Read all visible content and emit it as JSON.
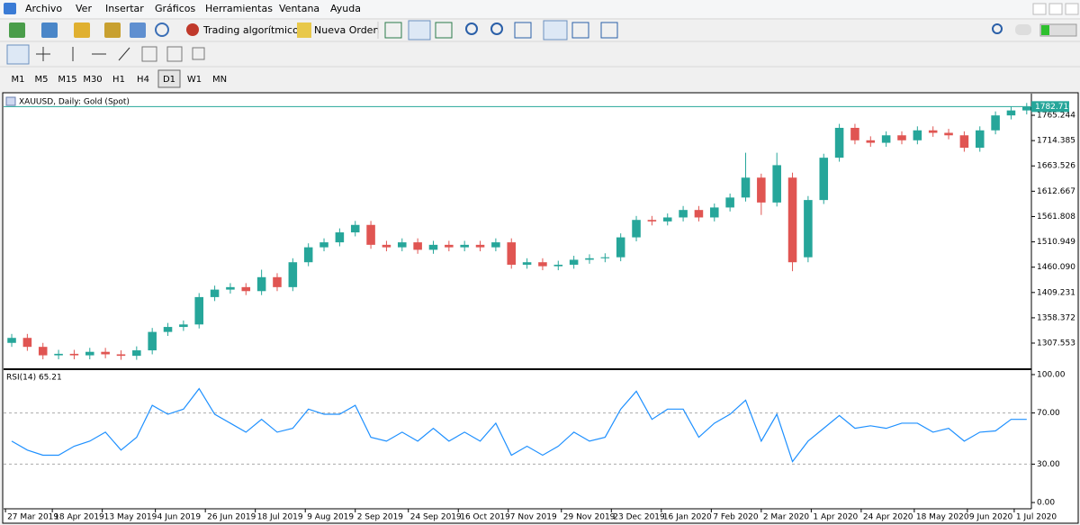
{
  "menu": [
    "Archivo",
    "Ver",
    "Insertar",
    "Gráficos",
    "Herramientas",
    "Ventana",
    "Ayuda"
  ],
  "toolbar": {
    "algo_button": "Trading algorítmico",
    "order_button": "Nueva Orden"
  },
  "timeframes": [
    "M1",
    "M5",
    "M15",
    "M30",
    "H1",
    "H4",
    "D1",
    "W1",
    "MN"
  ],
  "active_timeframe": "D1",
  "chart_data": [
    {
      "type": "candlestick",
      "title": "XAUUSD, Daily:  Gold (Spot)",
      "up_color": "#26a69a",
      "down_color": "#e05552",
      "grid": false,
      "x": [
        2,
        7,
        12,
        17,
        22,
        27,
        32,
        37,
        42,
        47,
        52,
        57,
        62,
        67,
        72,
        77,
        82,
        87,
        92,
        97,
        102,
        107,
        112,
        117,
        122,
        127,
        132,
        137,
        142,
        147,
        152,
        157,
        162,
        167,
        172,
        177,
        182,
        187,
        192,
        197,
        202,
        207,
        212,
        217,
        222,
        227,
        232,
        237,
        242,
        247,
        252,
        257,
        262,
        267,
        272,
        277,
        282,
        287,
        292,
        297,
        302,
        307,
        312,
        317,
        322,
        327
      ],
      "open": [
        1308,
        1318,
        1300,
        1283,
        1286,
        1283,
        1290,
        1285,
        1282,
        1293,
        1330,
        1340,
        1345,
        1400,
        1415,
        1420,
        1412,
        1440,
        1420,
        1470,
        1500,
        1510,
        1530,
        1545,
        1505,
        1500,
        1510,
        1495,
        1505,
        1500,
        1505,
        1500,
        1510,
        1465,
        1470,
        1462,
        1465,
        1475,
        1478,
        1480,
        1520,
        1555,
        1552,
        1560,
        1575,
        1560,
        1580,
        1600,
        1640,
        1590,
        1640,
        1480,
        1595,
        1680,
        1740,
        1715,
        1710,
        1725,
        1715,
        1735,
        1730,
        1725,
        1700,
        1735,
        1765,
        1775
      ],
      "high": [
        1326,
        1326,
        1308,
        1294,
        1294,
        1298,
        1298,
        1293,
        1301,
        1338,
        1348,
        1353,
        1408,
        1423,
        1428,
        1428,
        1455,
        1448,
        1478,
        1508,
        1518,
        1538,
        1553,
        1553,
        1513,
        1518,
        1518,
        1513,
        1513,
        1513,
        1513,
        1518,
        1518,
        1478,
        1478,
        1473,
        1483,
        1486,
        1488,
        1528,
        1563,
        1563,
        1568,
        1583,
        1583,
        1588,
        1608,
        1690,
        1648,
        1690,
        1650,
        1603,
        1688,
        1748,
        1748,
        1723,
        1733,
        1733,
        1743,
        1743,
        1738,
        1733,
        1743,
        1773,
        1783,
        1790
      ],
      "low": [
        1300,
        1292,
        1275,
        1275,
        1275,
        1275,
        1277,
        1274,
        1274,
        1285,
        1322,
        1332,
        1337,
        1392,
        1407,
        1404,
        1404,
        1412,
        1412,
        1462,
        1492,
        1502,
        1522,
        1497,
        1492,
        1492,
        1487,
        1487,
        1492,
        1492,
        1492,
        1492,
        1457,
        1457,
        1454,
        1454,
        1457,
        1467,
        1470,
        1472,
        1512,
        1544,
        1544,
        1552,
        1552,
        1552,
        1572,
        1592,
        1565,
        1582,
        1452,
        1470,
        1587,
        1672,
        1707,
        1702,
        1702,
        1707,
        1707,
        1722,
        1717,
        1692,
        1692,
        1727,
        1757,
        1767
      ],
      "close": [
        1318,
        1300,
        1283,
        1286,
        1283,
        1290,
        1285,
        1282,
        1293,
        1330,
        1340,
        1345,
        1400,
        1415,
        1420,
        1412,
        1440,
        1420,
        1470,
        1500,
        1510,
        1530,
        1545,
        1505,
        1500,
        1510,
        1495,
        1505,
        1500,
        1505,
        1500,
        1510,
        1465,
        1470,
        1462,
        1465,
        1475,
        1478,
        1480,
        1520,
        1555,
        1552,
        1560,
        1575,
        1560,
        1580,
        1600,
        1640,
        1590,
        1665,
        1470,
        1595,
        1680,
        1740,
        1715,
        1710,
        1725,
        1715,
        1735,
        1730,
        1725,
        1700,
        1735,
        1765,
        1775,
        1782
      ],
      "xlim": [
        -0.6,
        328.5
      ],
      "ylim": [
        1256.9,
        1808.7
      ],
      "yticks": [
        1307.553,
        1358.372,
        1409.231,
        {
          "value": 1460.09,
          "label": "1460.090"
        },
        1510.949,
        1561.808,
        1612.667,
        1663.526,
        1714.385,
        1765.244
      ],
      "last_price": {
        "value": 1782.71,
        "label": "1782.710"
      }
    },
    {
      "type": "line",
      "title": "RSI(14) 65.21",
      "series": [
        {
          "color": "#1e90ff",
          "values": [
            48,
            41,
            37,
            37,
            44,
            48,
            55,
            41,
            51,
            76,
            69,
            73,
            89,
            69,
            62,
            55,
            65,
            55,
            58,
            73,
            69,
            69,
            76,
            51,
            48,
            55,
            48,
            58,
            48,
            55,
            48,
            62,
            37,
            44,
            37,
            44,
            55,
            48,
            51,
            73,
            87,
            65,
            73,
            73,
            51,
            62,
            69,
            80,
            48,
            69,
            32,
            48,
            58,
            68,
            58,
            60,
            58,
            62,
            62,
            55,
            58,
            48,
            55,
            56,
            65,
            65
          ]
        }
      ],
      "x": [
        2,
        7,
        12,
        17,
        22,
        27,
        32,
        37,
        42,
        47,
        52,
        57,
        62,
        67,
        72,
        77,
        82,
        87,
        92,
        97,
        102,
        107,
        112,
        117,
        122,
        127,
        132,
        137,
        142,
        147,
        152,
        157,
        162,
        167,
        172,
        177,
        182,
        187,
        192,
        197,
        202,
        207,
        212,
        217,
        222,
        227,
        232,
        237,
        242,
        247,
        252,
        257,
        262,
        267,
        272,
        277,
        282,
        287,
        292,
        297,
        302,
        307,
        312,
        317,
        322,
        327
      ],
      "xlim": [
        -0.6,
        328.5
      ],
      "ylim": [
        -4.9,
        103.5
      ],
      "yticks": [
        {
          "value": 100,
          "label": "100.00"
        },
        {
          "value": 70,
          "label": "70.00"
        },
        {
          "value": 30,
          "label": "30.00"
        },
        {
          "value": 0,
          "label": "0.00"
        }
      ],
      "levels": [
        70,
        30
      ],
      "xticks": [
        {
          "value": 0,
          "label": "27 Mar 2019"
        },
        {
          "value": 15,
          "label": "18 Apr 2019"
        },
        {
          "value": 31,
          "label": "13 May 2019"
        },
        {
          "value": 48,
          "label": "4 Jun 2019"
        },
        {
          "value": 64,
          "label": "26 Jun 2019"
        },
        {
          "value": 80,
          "label": "18 Jul 2019"
        },
        {
          "value": 96,
          "label": "9 Aug 2019"
        },
        {
          "value": 112,
          "label": "2 Sep 2019"
        },
        {
          "value": 129,
          "label": "24 Sep 2019"
        },
        {
          "value": 145,
          "label": "16 Oct 2019"
        },
        {
          "value": 161,
          "label": "7 Nov 2019"
        },
        {
          "value": 178,
          "label": "29 Nov 2019"
        },
        {
          "value": 194,
          "label": "23 Dec 2019"
        },
        {
          "value": 210,
          "label": "16 Jan 2020"
        },
        {
          "value": 226,
          "label": "7 Feb 2020"
        },
        {
          "value": 242,
          "label": "2 Mar 2020"
        },
        {
          "value": 258,
          "label": "1 Apr 2020"
        },
        {
          "value": 274,
          "label": "24 Apr 2020"
        },
        {
          "value": 291,
          "label": "18 May 2020"
        },
        {
          "value": 308,
          "label": "9 Jun 2020"
        },
        {
          "value": 323,
          "label": "1 Jul 2020"
        }
      ]
    }
  ]
}
